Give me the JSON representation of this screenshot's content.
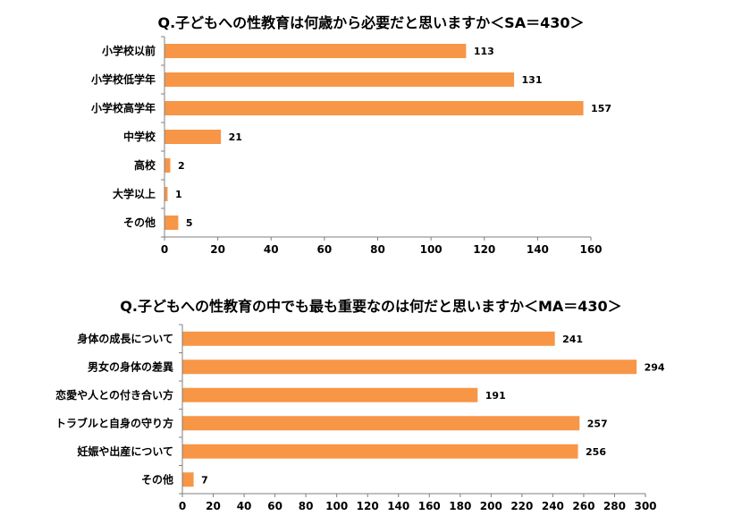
{
  "chart_data": [
    {
      "type": "bar",
      "orientation": "horizontal",
      "title": "Q.子どもへの性教育は何歳から必要だと思いますか＜SA＝430＞",
      "categories": [
        "小学校以前",
        "小学校低学年",
        "小学校高学年",
        "中学校",
        "高校",
        "大学以上",
        "その他"
      ],
      "values": [
        113,
        131,
        157,
        21,
        2,
        1,
        5
      ],
      "xlim": [
        0,
        160
      ],
      "xticks": [
        0,
        20,
        40,
        60,
        80,
        100,
        120,
        140,
        160
      ],
      "grid": false,
      "color": "#f79646"
    },
    {
      "type": "bar",
      "orientation": "horizontal",
      "title": "Q.子どもへの性教育の中でも最も重要なのは何だと思いますか＜MA＝430＞",
      "categories": [
        "身体の成長について",
        "男女の身体の差異",
        "恋愛や人との付き合い方",
        "トラブルと自身の守り方",
        "妊娠や出産について",
        "その他"
      ],
      "values": [
        241,
        294,
        191,
        257,
        256,
        7
      ],
      "xlim": [
        0,
        300
      ],
      "xticks": [
        0,
        20,
        40,
        60,
        80,
        100,
        120,
        140,
        160,
        180,
        200,
        220,
        240,
        260,
        280,
        300
      ],
      "grid": false,
      "color": "#f79646"
    }
  ]
}
